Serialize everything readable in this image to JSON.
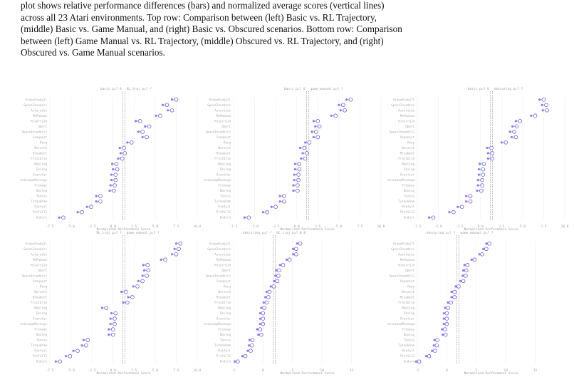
{
  "caption": {
    "line1": "plot shows relative performance differences (bars) and normalized average scores (vertical lines)",
    "line2": "across all 23 Atari environments. Top row: Comparison between (left) Basic vs. RL Trajectory,",
    "line3": "(middle) Basic vs. Game Manual, and (right) Basic vs. Obscured scenarios. Bottom row: Comparison",
    "line4": "between (left) Game Manual vs. RL Trajectory, (middle) Obscured vs. RL Trajectory, and (right)",
    "line5": "Obscured vs. Game Manual scenarios."
  },
  "games": [
    "VideoPinball",
    "SpaceInvaders",
    "Asteroids",
    "MsPacman",
    "Riverraid",
    "Qbert",
    "SpaceInvaders2",
    "Seaquest",
    "Pong",
    "Berzerk",
    "Breakout",
    "Frostbite",
    "Bowling",
    "Skiing",
    "Gravitar",
    "MontezumaRevenge",
    "Freeway",
    "Boxing",
    "Tennis",
    "Tutankham",
    "Pitfall",
    "Pitfall2",
    "Enduro"
  ],
  "colors": {
    "bar_a": "#8e7cf0",
    "bar_b": "#4cc6a6",
    "vline": "#777777",
    "point": "#6a5bd8",
    "neg": "#f08080"
  },
  "chart_data": [
    {
      "type": "bar",
      "title_left": "basic p=? 0",
      "title_right": "RL_traj p=? ?",
      "xlabel": "Normalized Performance Score",
      "xlim": [
        -7.5,
        10
      ],
      "ticks": [
        "-7.5",
        "-5.0",
        "-2.5",
        "0.0",
        "2.5",
        "5.0",
        "7.5",
        "10.0"
      ],
      "values": [
        7.5,
        6.4,
        7.0,
        5.6,
        3.2,
        4.3,
        3.5,
        4.0,
        2.2,
        1.3,
        1.4,
        1.1,
        0.4,
        0.5,
        0.3,
        0.3,
        0.2,
        0.1,
        -1.5,
        -1.5,
        -2.6,
        -3.7,
        -5.9
      ]
    },
    {
      "type": "bar",
      "title_left": "basic p=? 0",
      "title_right": "game_manual p=? ?",
      "xlabel": "Normalized Performance Score",
      "xlim": [
        -7.5,
        10
      ],
      "ticks": [
        "-7.5",
        "-5.0",
        "-2.5",
        "0.0",
        "2.5",
        "5.0",
        "7.5",
        "10.0"
      ],
      "values": [
        6.4,
        5.5,
        5.7,
        4.6,
        2.5,
        2.7,
        2.3,
        2.5,
        1.5,
        0.9,
        1.2,
        1.0,
        0.3,
        0.3,
        0.2,
        0.2,
        0.1,
        0.1,
        -1.5,
        -1.5,
        -2.5,
        -3.5,
        -5.7
      ]
    },
    {
      "type": "bar",
      "title_left": "basic p=? 0",
      "title_right": "obscuring p=? ?",
      "xlabel": "Normalized Performance Score",
      "xlim": [
        -7.5,
        10
      ],
      "ticks": [
        "-7.5",
        "-5.0",
        "-2.5",
        "0.0",
        "2.5",
        "5.0",
        "7.5",
        "10.0"
      ],
      "values": [
        7.5,
        7.8,
        7.9,
        6.5,
        4.7,
        4.3,
        4.0,
        4.2,
        3.0,
        1.3,
        1.4,
        1.4,
        0.4,
        0.3,
        0.3,
        0.2,
        0.2,
        0.1,
        -1.2,
        -1.2,
        -2.2,
        -3.2,
        -5.6
      ]
    },
    {
      "type": "bar",
      "title_left": "RL_traj p=? ?",
      "title_right": "game_manual p=? ?",
      "xlabel": "Normalized Performance Score",
      "xlim": [
        -7.5,
        10
      ],
      "ticks": [
        "-7.5",
        "-5.0",
        "-2.5",
        "0.0",
        "2.5",
        "5.0",
        "7.5",
        "10.0"
      ],
      "values": [
        8.0,
        7.8,
        7.5,
        6.2,
        4.1,
        4.2,
        4.0,
        3.5,
        2.9,
        1.5,
        2.3,
        1.7,
        -0.8,
        0.3,
        0.2,
        0.2,
        0.0,
        0.0,
        -3.0,
        -3.2,
        -4.2,
        -5.1,
        -6.3
      ]
    },
    {
      "type": "bar",
      "title_left": "obscuring p=? ?",
      "title_right": "RL_traj p=? 0.8",
      "xlabel": "Normalized Performance Score",
      "xlim": [
        -5,
        20
      ],
      "ticks": [
        "-5",
        "0",
        "5",
        "10",
        "15"
      ],
      "values": [
        6.3,
        5.6,
        5.6,
        4.5,
        3.4,
        2.7,
        2.6,
        2.4,
        1.8,
        1.1,
        0.9,
        0.6,
        0.2,
        0.0,
        0.0,
        0.0,
        -0.5,
        -0.3,
        -1.8,
        -1.9,
        -2.1,
        -3.0,
        -4.3
      ]
    },
    {
      "type": "bar",
      "title_left": "obscuring p=? ?",
      "title_right": "game_manual p=? ?",
      "xlabel": "Normalized Performance Score",
      "xlim": [
        -5,
        20
      ],
      "ticks": [
        "-5",
        "0",
        "5",
        "10",
        "15"
      ],
      "values": [
        7.2,
        6.7,
        6.0,
        4.7,
        3.5,
        3.3,
        3.2,
        2.8,
        2.0,
        1.3,
        1.3,
        0.7,
        0.2,
        0.0,
        0.0,
        0.0,
        -0.3,
        -0.2,
        -1.6,
        -1.7,
        -2.0,
        -3.0,
        -4.7
      ]
    }
  ]
}
